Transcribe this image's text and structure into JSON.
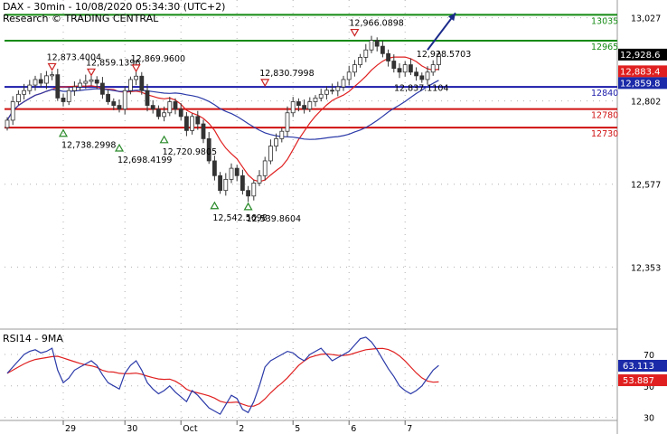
{
  "header": {
    "title": "DAX - 30min - 10/08/2020 05:34:30 (UTC+2)",
    "subtitle": "Research © TRADING CENTRAL"
  },
  "colors": {
    "candle": "#333333",
    "ma_fast": "#e02020",
    "ma_slow": "#2b3aa8",
    "resistance_green": "#138a13",
    "pivot_blue": "#1a1aaa",
    "support_red": "#d01010",
    "arrow": "#1a2a8a",
    "marker_up": "#2a8a2a",
    "marker_down": "#cc2222"
  },
  "chart_data": [
    {
      "type": "candlestick",
      "ylim": [
        12190,
        13075
      ],
      "y_ticks": [
        "13,027",
        "12,802",
        "12,577",
        "12,353"
      ],
      "x_ticks": [
        "29",
        "30",
        "Oct",
        "2",
        "5",
        "6",
        "7"
      ],
      "price_path": [
        12750,
        12800,
        12820,
        12830,
        12845,
        12860,
        12850,
        12870,
        12873,
        12810,
        12800,
        12830,
        12840,
        12850,
        12855,
        12859,
        12850,
        12820,
        12800,
        12790,
        12780,
        12830,
        12860,
        12869,
        12830,
        12790,
        12780,
        12760,
        12770,
        12800,
        12780,
        12760,
        12722,
        12760,
        12740,
        12700,
        12640,
        12600,
        12560,
        12590,
        12620,
        12600,
        12560,
        12545,
        12580,
        12600,
        12640,
        12680,
        12700,
        12720,
        12770,
        12800,
        12790,
        12780,
        12800,
        12810,
        12820,
        12831,
        12830,
        12840,
        12860,
        12880,
        12900,
        12920,
        12940,
        12966,
        12950,
        12930,
        12910,
        12890,
        12880,
        12900,
        12880,
        12870,
        12860,
        12880,
        12900,
        12929
      ],
      "support_resistance": [
        {
          "label": "13035",
          "value": 13035,
          "kind": "resistance"
        },
        {
          "label": "12965",
          "value": 12965,
          "kind": "resistance"
        },
        {
          "label": "12840",
          "value": 12840,
          "kind": "pivot"
        },
        {
          "label": "12780",
          "value": 12780,
          "kind": "support"
        },
        {
          "label": "12730",
          "value": 12730,
          "kind": "support"
        }
      ],
      "annotations": [
        {
          "text": "12,873.4004",
          "price": 12873.4,
          "bar": 8,
          "dir": "down"
        },
        {
          "text": "12,859.1396",
          "price": 12859.14,
          "bar": 15,
          "dir": "down"
        },
        {
          "text": "12,869.9600",
          "price": 12869.96,
          "bar": 23,
          "dir": "down"
        },
        {
          "text": "12,738.2998",
          "price": 12738.3,
          "bar": 10,
          "dir": "up"
        },
        {
          "text": "12,698.4199",
          "price": 12698.42,
          "bar": 20,
          "dir": "up"
        },
        {
          "text": "12,720.9805",
          "price": 12720.98,
          "bar": 28,
          "dir": "up"
        },
        {
          "text": "12,542.5698",
          "price": 12542.57,
          "bar": 37,
          "dir": "up"
        },
        {
          "text": "12,539.8604",
          "price": 12539.86,
          "bar": 43,
          "dir": "up"
        },
        {
          "text": "12,830.7998",
          "price": 12830.8,
          "bar": 46,
          "dir": "down"
        },
        {
          "text": "12,966.0898",
          "price": 12966.09,
          "bar": 62,
          "dir": "down"
        },
        {
          "text": "12,928.5703",
          "price": 12928.57,
          "bar": 74,
          "dir": "none"
        },
        {
          "text": "12,837.1104",
          "price": 12837.11,
          "bar": 70,
          "dir": "none"
        }
      ],
      "price_badges": [
        {
          "text": "12,928.6",
          "value": 12928.6,
          "bg": "#000000"
        },
        {
          "text": "12,883.4",
          "value": 12883.4,
          "bg": "#e02020"
        },
        {
          "text": "12,859.8",
          "value": 12859.8,
          "bg": "#1a2aa8"
        }
      ],
      "forecast_arrow": {
        "from_bar": 75,
        "from_price": 12940,
        "to_bar": 80,
        "to_price": 13040
      }
    },
    {
      "type": "line",
      "title": "RSI14 - 9MA",
      "ylim": [
        28,
        85
      ],
      "y_ticks": [
        "70",
        "50",
        "30"
      ],
      "rsi": [
        58,
        62,
        66,
        70,
        72,
        73,
        71,
        72,
        74,
        60,
        52,
        55,
        60,
        62,
        64,
        66,
        63,
        57,
        52,
        50,
        48,
        58,
        63,
        66,
        60,
        52,
        48,
        45,
        47,
        50,
        46,
        43,
        40,
        47,
        44,
        40,
        36,
        34,
        32,
        38,
        44,
        42,
        35,
        33,
        40,
        50,
        62,
        66,
        68,
        70,
        72,
        71,
        68,
        66,
        70,
        72,
        74,
        70,
        66,
        68,
        70,
        72,
        76,
        80,
        81,
        78,
        73,
        67,
        61,
        56,
        50,
        47,
        45,
        47,
        50,
        55,
        60,
        63
      ],
      "badges": [
        {
          "text": "63.113",
          "value": 63.113,
          "bg": "#1a2aa8"
        },
        {
          "text": "53.887",
          "value": 53.887,
          "bg": "#e02020"
        }
      ]
    }
  ]
}
